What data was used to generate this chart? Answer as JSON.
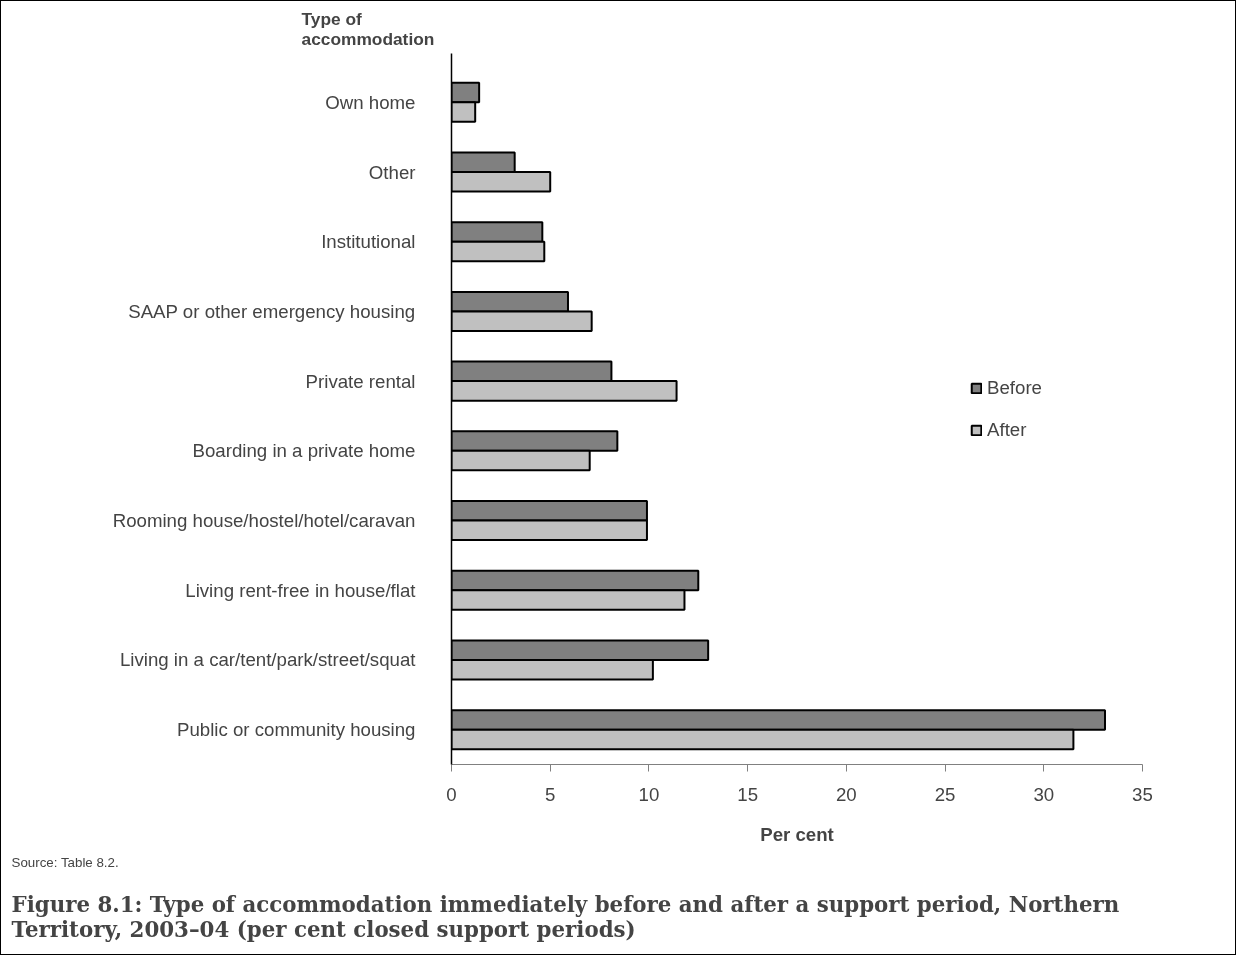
{
  "chart_data": {
    "type": "bar",
    "orientation": "horizontal",
    "title": "Figure 8.1: Type of accommodation immediately before and after a support period, Northern Territory, 2003–04 (per cent closed support periods)",
    "ylabel": "Type of accommodation",
    "xlabel": "Per cent",
    "annotations": [
      "Source: Table 8.2."
    ],
    "categories": [
      "Own home",
      "Other",
      "Institutional",
      "SAAP or other emergency housing",
      "Private rental",
      "Boarding in a private home",
      "Rooming house/hostel/hotel/caravan",
      "Living rent-free in house/flat",
      "Living in a car/tent/park/street/squat",
      "Public or community housing"
    ],
    "series": [
      {
        "name": "Before",
        "color": "#808080",
        "values": [
          1.4,
          3.2,
          4.6,
          5.9,
          8.1,
          8.4,
          9.9,
          12.5,
          13.0,
          33.1
        ]
      },
      {
        "name": "After",
        "color": "#c0c0c0",
        "values": [
          1.2,
          5.0,
          4.7,
          7.1,
          11.4,
          7.0,
          9.9,
          11.8,
          10.2,
          31.5
        ]
      }
    ],
    "xlim": [
      0,
      35
    ],
    "xticks": [
      0,
      5,
      10,
      15,
      20,
      25,
      30,
      35
    ],
    "grid": false,
    "legend": "right"
  }
}
